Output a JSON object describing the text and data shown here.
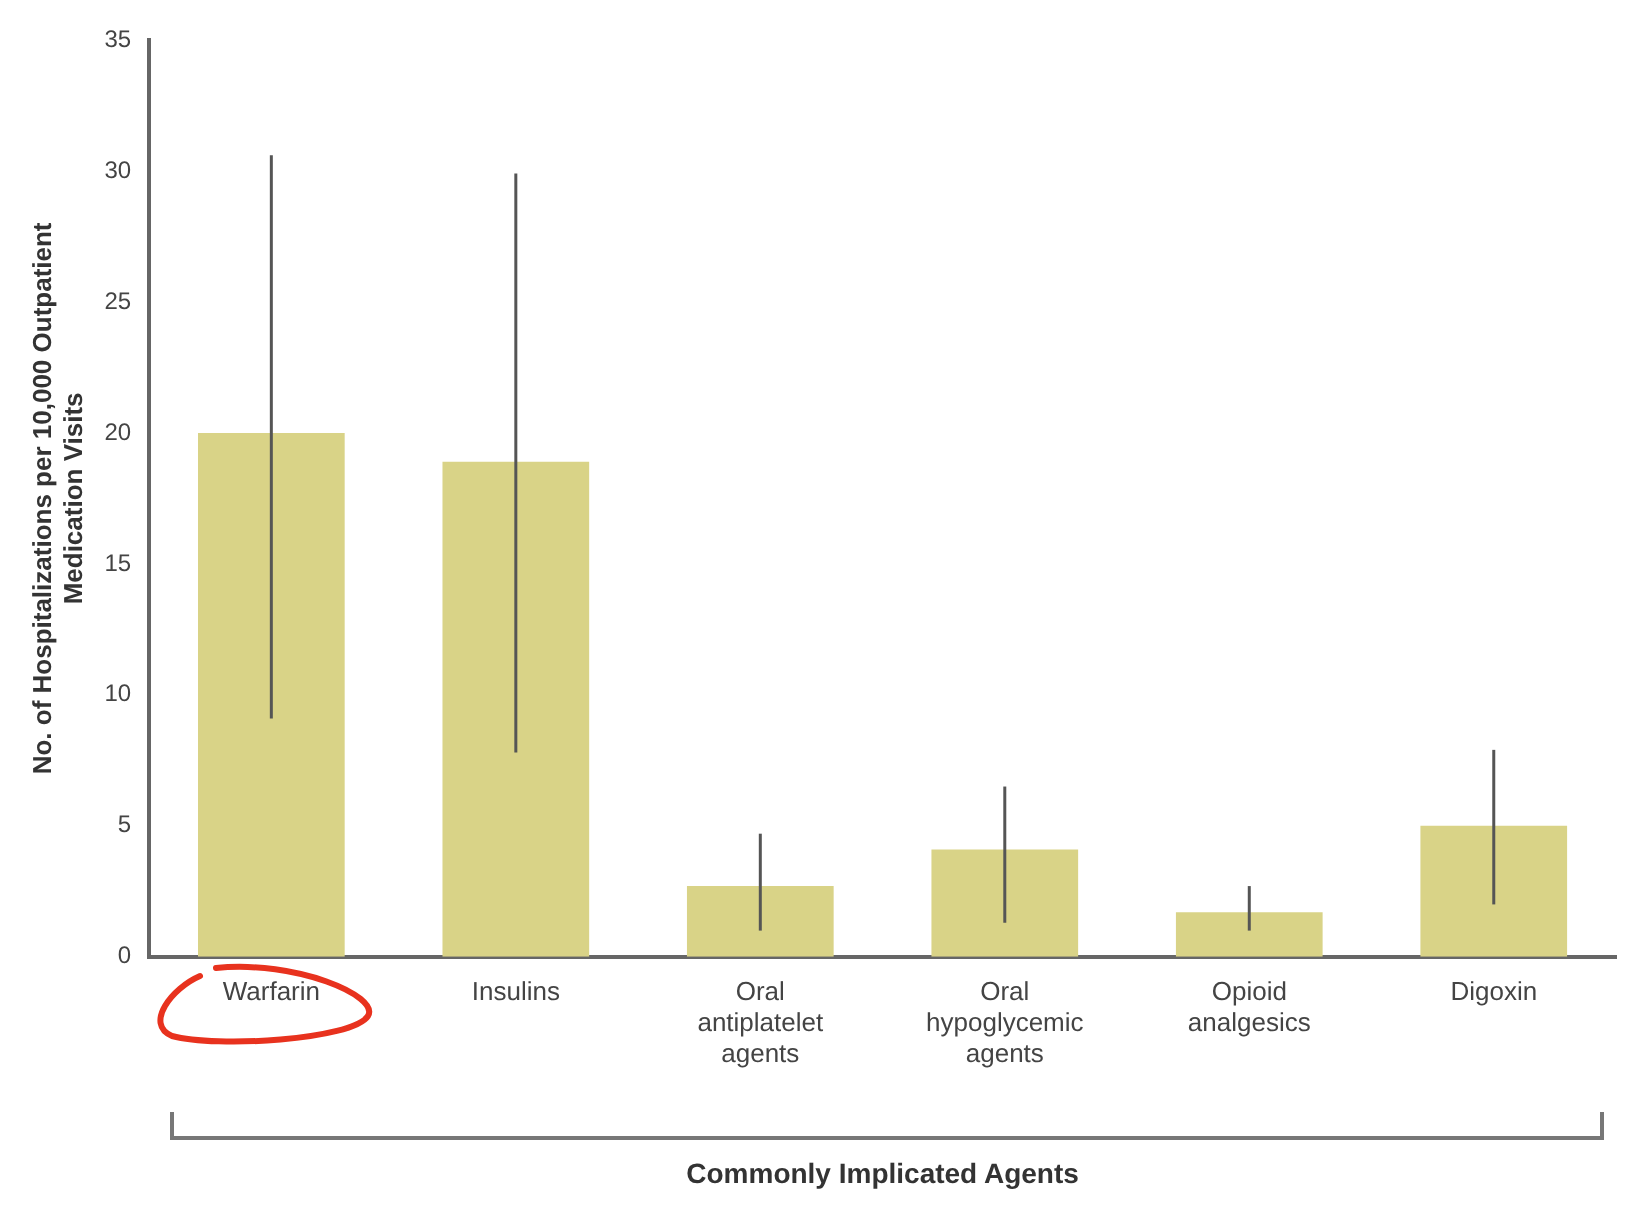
{
  "chart_data": {
    "type": "bar",
    "categories": [
      "Warfarin",
      "Insulins",
      "Oral antiplatelet agents",
      "Oral hypoglycemic agents",
      "Opioid analgesics",
      "Digoxin"
    ],
    "values": [
      20.0,
      18.9,
      2.7,
      4.1,
      1.7,
      5.0
    ],
    "errors": [
      [
        9.1,
        30.6
      ],
      [
        7.8,
        29.9
      ],
      [
        1.0,
        4.7
      ],
      [
        1.3,
        6.5
      ],
      [
        1.0,
        2.7
      ],
      [
        2.0,
        7.9
      ]
    ],
    "color": "#d9d387",
    "xlabel": "Commonly Implicated Agents",
    "ylabel": "No. of Hospitalizations per 10,000 Outpatient Medication Visits",
    "ylim": [
      0,
      35
    ],
    "yticks": [
      0,
      5,
      10,
      15,
      20,
      25,
      30,
      35
    ],
    "grid": false,
    "legend": false
  }
}
